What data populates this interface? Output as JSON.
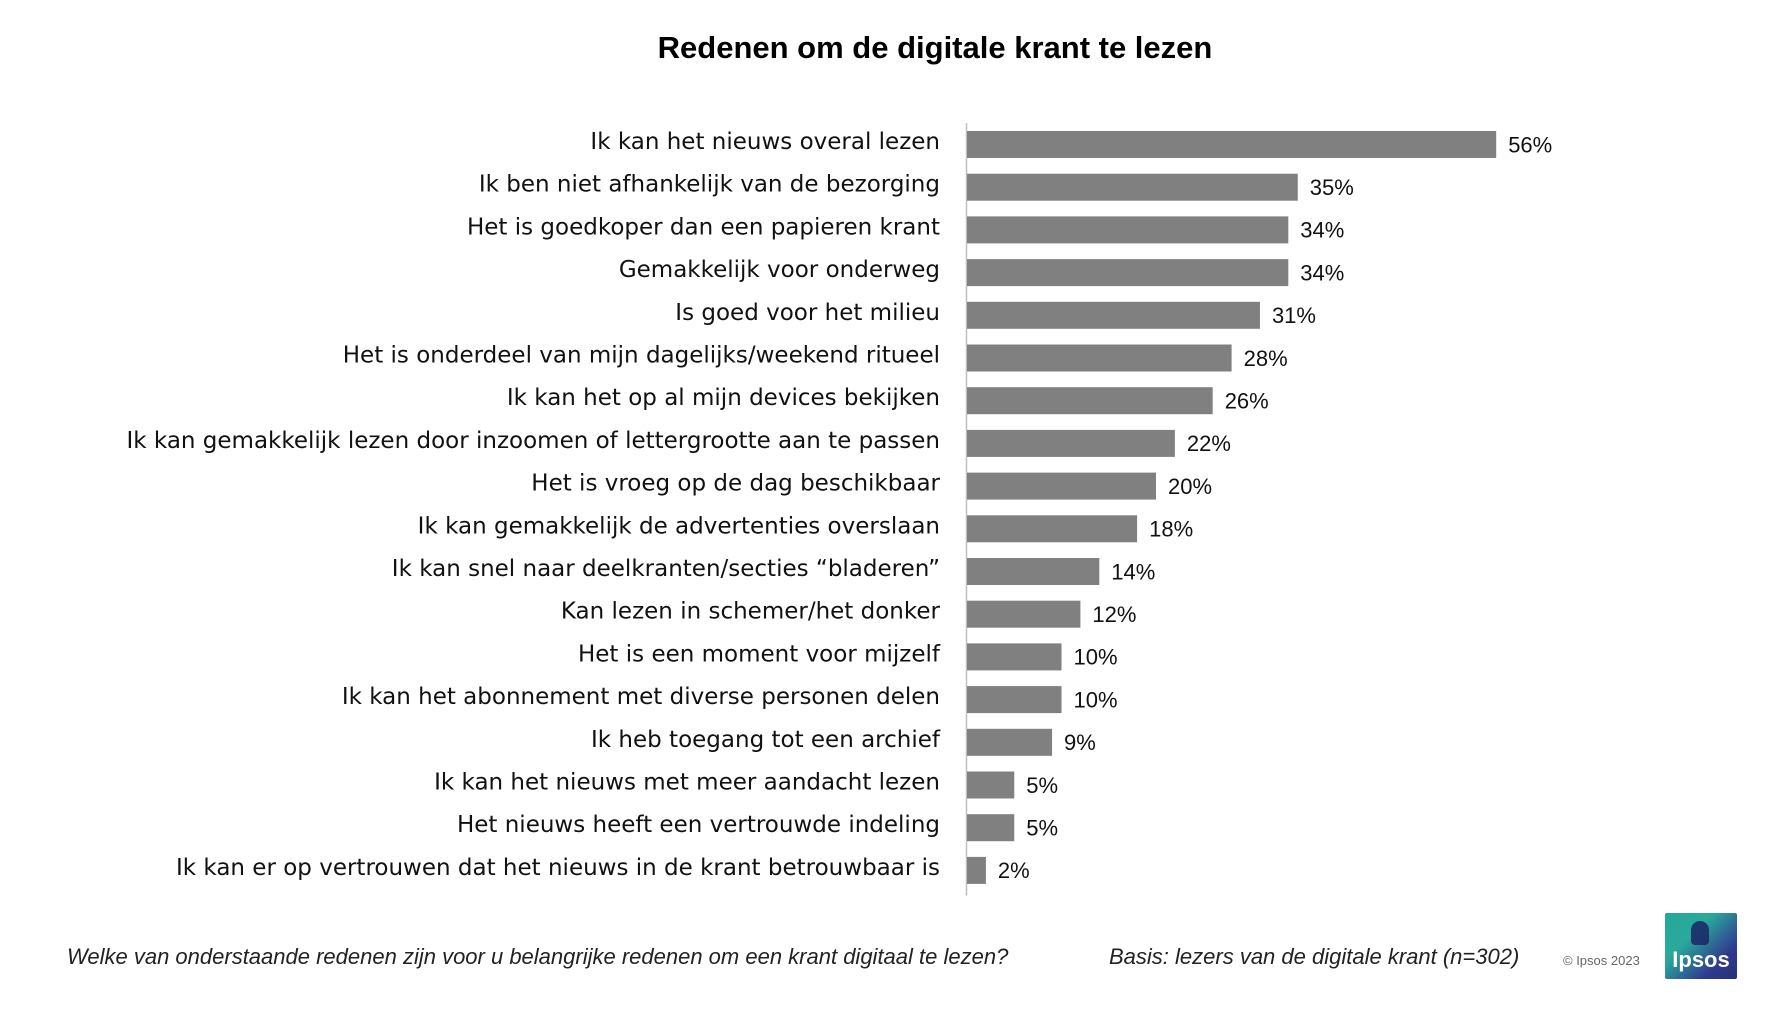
{
  "chart_data": {
    "type": "bar",
    "orientation": "horizontal",
    "title": "Redenen om de digitale krant te lezen",
    "categories": [
      "Ik kan het nieuws overal lezen",
      "Ik ben niet afhankelijk van de bezorging",
      "Het is goedkoper dan een papieren krant",
      "Gemakkelijk voor onderweg",
      "Is goed voor het milieu",
      "Het is onderdeel van mijn dagelijks/weekend ritueel",
      "Ik kan het op al mijn devices bekijken",
      "Ik kan gemakkelijk lezen door inzoomen of lettergrootte aan te passen",
      "Het is vroeg op de dag beschikbaar",
      "Ik kan gemakkelijk de advertenties overslaan",
      "Ik kan snel naar deelkranten/secties “bladeren”",
      "Kan lezen in schemer/het donker",
      "Het is een moment voor mijzelf",
      "Ik kan het abonnement met diverse personen delen",
      "Ik heb toegang tot een archief",
      "Ik kan het nieuws met meer aandacht lezen",
      "Het nieuws heeft een vertrouwde indeling",
      "Ik kan er op vertrouwen dat het nieuws in de krant betrouwbaar is"
    ],
    "values": [
      56,
      35,
      34,
      34,
      31,
      28,
      26,
      22,
      20,
      18,
      14,
      12,
      10,
      10,
      9,
      5,
      5,
      2
    ],
    "value_labels": [
      "56%",
      "35%",
      "34%",
      "34%",
      "31%",
      "28%",
      "26%",
      "22%",
      "20%",
      "18%",
      "14%",
      "12%",
      "10%",
      "10%",
      "9%",
      "5%",
      "5%",
      "2%"
    ],
    "unit": "%",
    "xlim": [
      0,
      100
    ],
    "grid": false,
    "bar_color": "#808080",
    "axis_color": "#bfbfbf"
  },
  "footer": {
    "question": "Welke van onderstaande redenen zijn voor u belangrijke redenen om een krant digitaal te lezen?",
    "basis": "Basis: lezers van de digitale krant (n=302)",
    "copyright": "© Ipsos 2023"
  },
  "logo": {
    "text": "Ipsos"
  }
}
